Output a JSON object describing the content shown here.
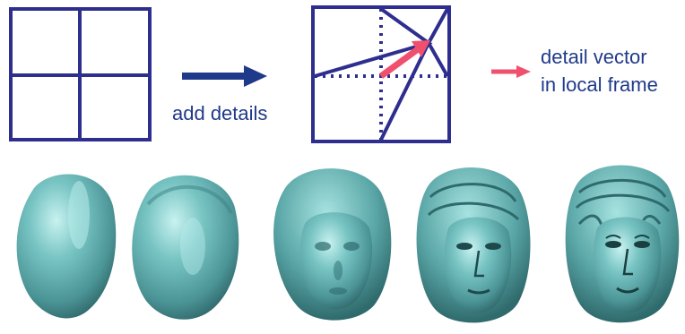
{
  "labels": {
    "add_details": "add details",
    "detail_vector_line1": "detail vector",
    "detail_vector_line2": "in local frame"
  },
  "colors": {
    "frame": "#2e2e8f",
    "arrow": "#1f3a8a",
    "detail_vector": "#f0506e",
    "head_base": "#6fbcbc",
    "head_light": "#c8f2f0",
    "head_dark": "#2e6b6e"
  },
  "heads": [
    {
      "name": "head-stage-1",
      "detail": 0
    },
    {
      "name": "head-stage-2",
      "detail": 1
    },
    {
      "name": "head-stage-3",
      "detail": 2
    },
    {
      "name": "head-stage-4",
      "detail": 3
    },
    {
      "name": "head-stage-5",
      "detail": 4
    }
  ]
}
